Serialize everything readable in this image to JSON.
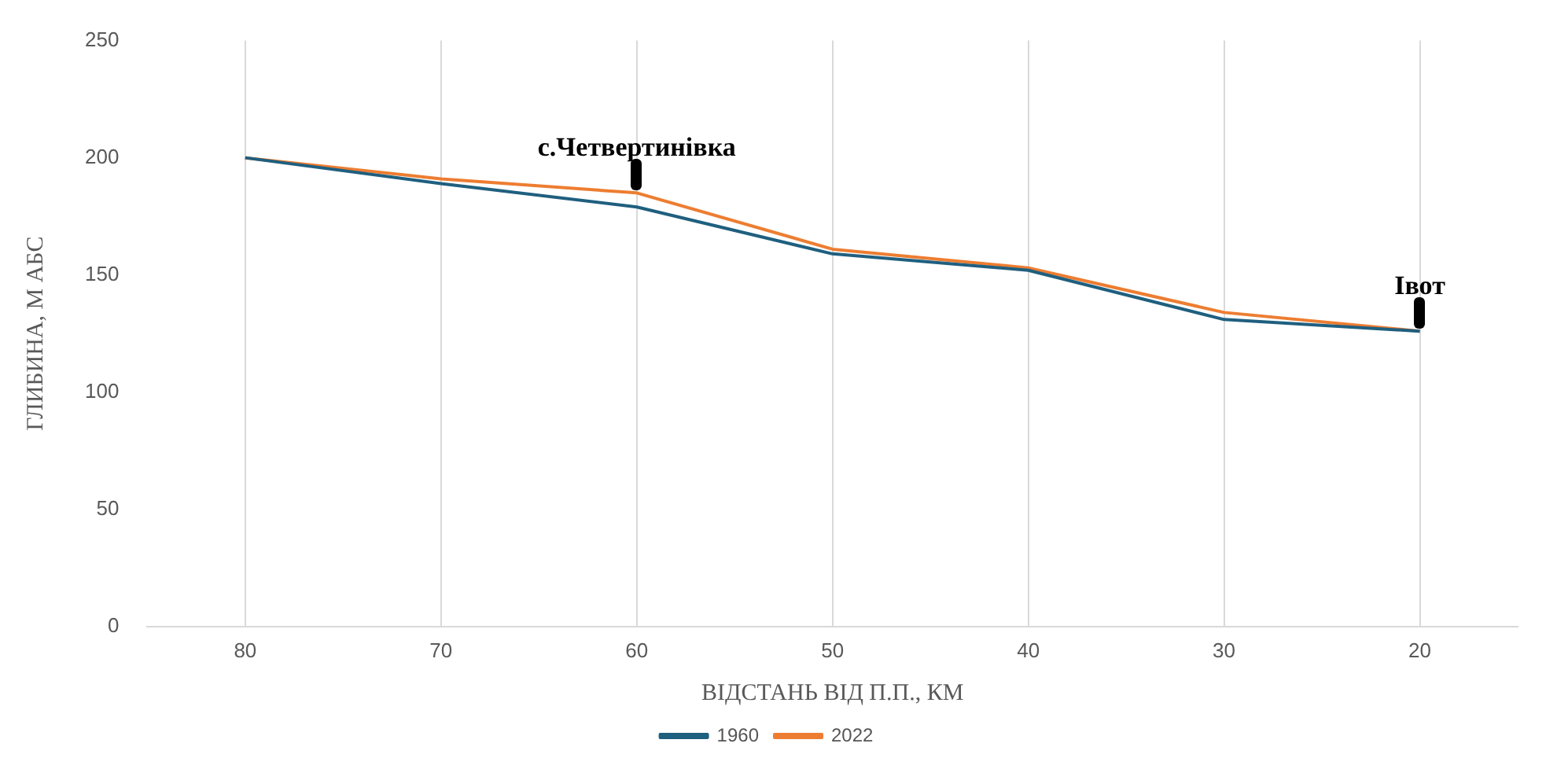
{
  "chart_data": {
    "type": "line",
    "xlabel": "ВІДСТАНЬ ВІД П.П., КМ",
    "ylabel": "ГЛИБИНА, М АБС",
    "categories": [
      "80",
      "70",
      "60",
      "50",
      "40",
      "30",
      "20"
    ],
    "series": [
      {
        "name": "1960",
        "color": "#1f5f7f",
        "values": [
          200,
          189,
          179,
          159,
          152,
          131,
          126
        ]
      },
      {
        "name": "2022",
        "color": "#ed7d31",
        "values": [
          200,
          191,
          185,
          161,
          153,
          134,
          126
        ]
      }
    ],
    "ylim": [
      0,
      250
    ],
    "yticks": [
      0,
      50,
      100,
      150,
      200,
      250
    ],
    "grid": "x",
    "legend": "bottom",
    "marker": "none",
    "line_style": "solid",
    "annotations": [
      {
        "text": "с.Четвертинівка",
        "x": "60",
        "y": 185
      },
      {
        "text": "Івот",
        "x": "20",
        "y": 126
      }
    ]
  }
}
